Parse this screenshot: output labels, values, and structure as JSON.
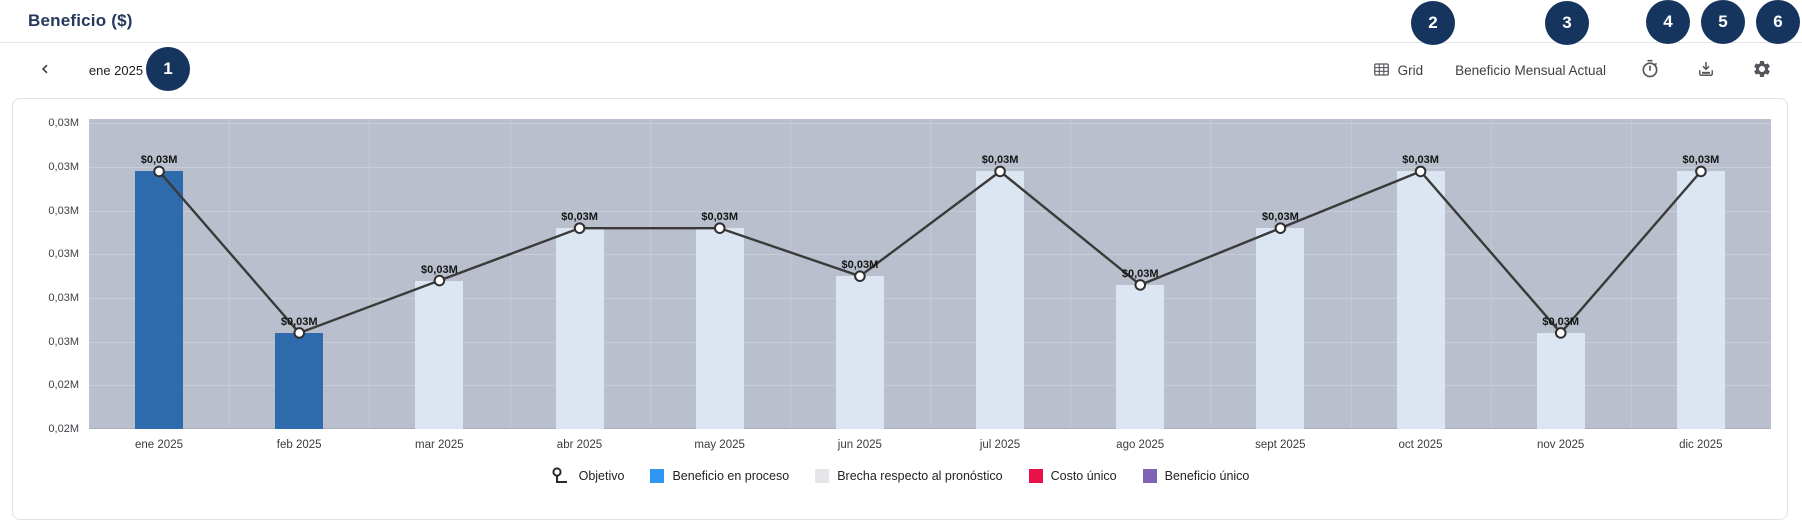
{
  "header": {
    "title": "Beneficio ($)"
  },
  "toolbar": {
    "month_label": "ene 2025",
    "grid_button_label": "Grid",
    "view_button_label": "Beneficio Mensual Actual",
    "icons": [
      "chevron-left",
      "chevron-right",
      "grid-table",
      "timer",
      "download",
      "settings-gear"
    ]
  },
  "annotations": {
    "badges": [
      "1",
      "2",
      "3",
      "4",
      "5",
      "6"
    ]
  },
  "chart_data": {
    "type": "bar+line",
    "title": "Beneficio ($)",
    "categories": [
      "ene 2025",
      "feb 2025",
      "mar 2025",
      "abr 2025",
      "may 2025",
      "jun 2025",
      "jul 2025",
      "ago 2025",
      "sept 2025",
      "oct 2025",
      "nov 2025",
      "dic 2025"
    ],
    "bar_values_millions": [
      0.0289,
      0.0252,
      0.0264,
      0.0276,
      0.0276,
      0.0265,
      0.0289,
      0.0263,
      0.0276,
      0.0289,
      0.0252,
      0.0289
    ],
    "bar_series_membership": [
      "in_process",
      "in_process",
      "gap",
      "gap",
      "gap",
      "gap",
      "gap",
      "gap",
      "gap",
      "gap",
      "gap",
      "gap"
    ],
    "line_series": {
      "name": "Objetivo",
      "values_millions": [
        0.0289,
        0.0252,
        0.0264,
        0.0276,
        0.0276,
        0.0265,
        0.0289,
        0.0263,
        0.0276,
        0.0289,
        0.0252,
        0.0289
      ]
    },
    "point_labels": [
      "$0,03M",
      "$0,03M",
      "$0,03M",
      "$0,03M",
      "$0,03M",
      "$0,03M",
      "$0,03M",
      "$0,03M",
      "$0,03M",
      "$0,03M",
      "$0,03M",
      "$0,03M"
    ],
    "y_ticks": [
      {
        "value_millions": 0.03,
        "label": "0,03M"
      },
      {
        "value_millions": 0.029,
        "label": "0,03M"
      },
      {
        "value_millions": 0.028,
        "label": "0,03M"
      },
      {
        "value_millions": 0.027,
        "label": "0,03M"
      },
      {
        "value_millions": 0.026,
        "label": "0,03M"
      },
      {
        "value_millions": 0.025,
        "label": "0,03M"
      },
      {
        "value_millions": 0.024,
        "label": "0,02M"
      },
      {
        "value_millions": 0.023,
        "label": "0,02M"
      }
    ],
    "ylim_millions": [
      0.023,
      0.0301
    ],
    "grid": true,
    "legend_position": "bottom",
    "legend": [
      {
        "label": "Objetivo",
        "swatch": "line-marker",
        "color": "#2b2b2b"
      },
      {
        "label": "Beneficio en proceso",
        "swatch": "square",
        "color": "#2f96f3"
      },
      {
        "label": "Brecha respecto al pronóstico",
        "swatch": "square",
        "color": "#e4e6ea"
      },
      {
        "label": "Costo único",
        "swatch": "square",
        "color": "#ea1048"
      },
      {
        "label": "Beneficio único",
        "swatch": "square",
        "color": "#7e63b4"
      }
    ],
    "colors": {
      "bar_in_process": "#2e6bac",
      "bar_gap": "#dce5f2",
      "plot_background": "#b9bfcc",
      "gridline_h": "#c8cdd8",
      "gridline_v": "#c4cad5",
      "target_line": "#3a3a3a",
      "marker_fill": "#ffffff",
      "badge_background": "#16355e",
      "title_navy": "#25395c"
    }
  }
}
